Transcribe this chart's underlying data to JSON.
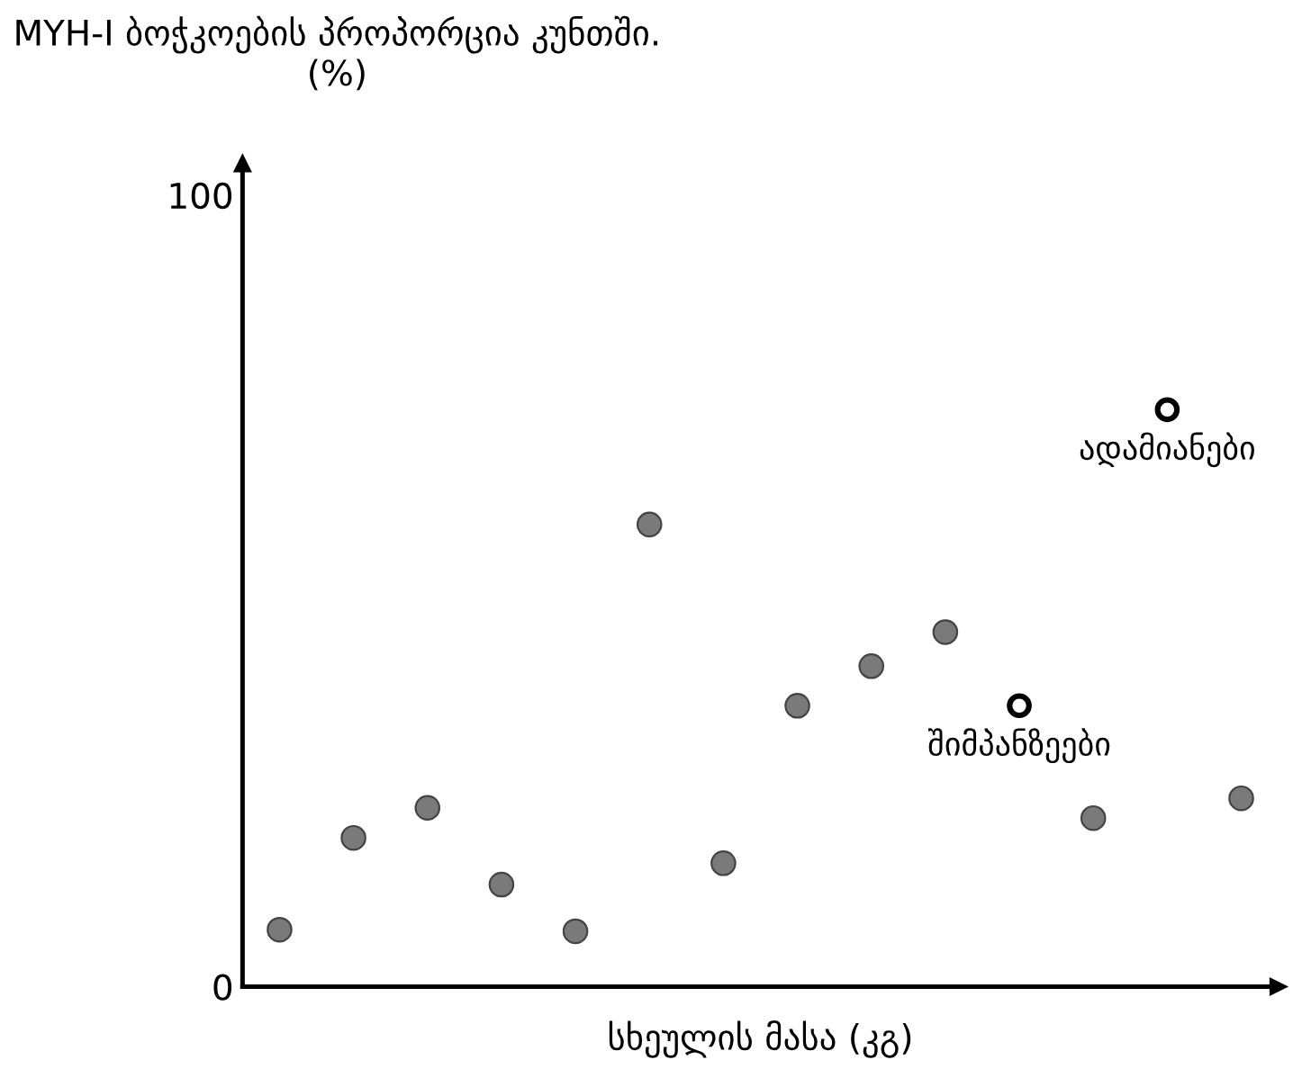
{
  "chart_data": {
    "type": "scatter",
    "ylabel": "MYH-I ბოჭკოების პროპორცია კუნთში.\n(%)",
    "xlabel": "სხეულის მასა (კგ)",
    "categories": [
      null,
      null,
      null,
      null,
      null,
      null,
      null,
      null,
      null,
      null,
      null,
      null,
      null,
      null
    ],
    "ylim": [
      0,
      104
    ],
    "yticks": [
      0,
      100
    ],
    "grid": false,
    "legend": "right",
    "marker": "circle",
    "series": [
      {
        "color": "#7a7a7a",
        "values": [
          7.2,
          18.8,
          22.6,
          12.9,
          7.0,
          58.4,
          15.6,
          35.5,
          40.5,
          44.8,
          null,
          21.3,
          null,
          23.8
        ]
      },
      {
        "name": "ადამიანები",
        "color": "#000000",
        "values": [
          null,
          null,
          null,
          null,
          null,
          null,
          null,
          null,
          null,
          null,
          null,
          null,
          72.9,
          null
        ]
      },
      {
        "name": "შიმპანზეები",
        "color": "#000000",
        "values": [
          null,
          null,
          null,
          null,
          null,
          null,
          null,
          null,
          null,
          null,
          35.5,
          null,
          null,
          null
        ]
      }
    ]
  }
}
